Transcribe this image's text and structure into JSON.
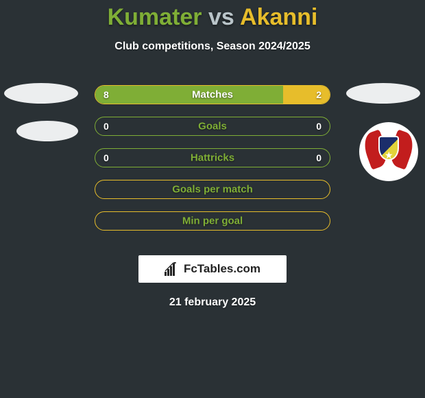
{
  "title_left": "Kumater",
  "title_vs": "vs",
  "title_right": "Akanni",
  "subtitle": "Club competitions, Season 2024/2025",
  "footer_brand": "FcTables.com",
  "footer_date": "21 february 2025",
  "colors": {
    "title_left": "#7fae36",
    "title_vs": "#b9c4c9",
    "title_right": "#e7bd2b",
    "bg": "#2a3135"
  },
  "bars": [
    {
      "label": "Matches",
      "left_val": "8",
      "right_val": "2",
      "left_pct": 80,
      "right_pct": 20,
      "border_color": "#e7bd2b",
      "left_color": "#7fae36",
      "right_color": "#e7bd2b",
      "label_color": "#ffffff"
    },
    {
      "label": "Goals",
      "left_val": "0",
      "right_val": "0",
      "left_pct": 0,
      "right_pct": 0,
      "border_color": "#7fae36",
      "left_color": "#7fae36",
      "right_color": "#e7bd2b",
      "label_color": "#7fae36"
    },
    {
      "label": "Hattricks",
      "left_val": "0",
      "right_val": "0",
      "left_pct": 0,
      "right_pct": 0,
      "border_color": "#7fae36",
      "left_color": "#7fae36",
      "right_color": "#e7bd2b",
      "label_color": "#7fae36"
    },
    {
      "label": "Goals per match",
      "left_val": "",
      "right_val": "",
      "left_pct": 0,
      "right_pct": 0,
      "border_color": "#e7bd2b",
      "left_color": "#7fae36",
      "right_color": "#e7bd2b",
      "label_color": "#7fae36"
    },
    {
      "label": "Min per goal",
      "left_val": "",
      "right_val": "",
      "left_pct": 0,
      "right_pct": 0,
      "border_color": "#e7bd2b",
      "left_color": "#7fae36",
      "right_color": "#e7bd2b",
      "label_color": "#7fae36"
    }
  ]
}
